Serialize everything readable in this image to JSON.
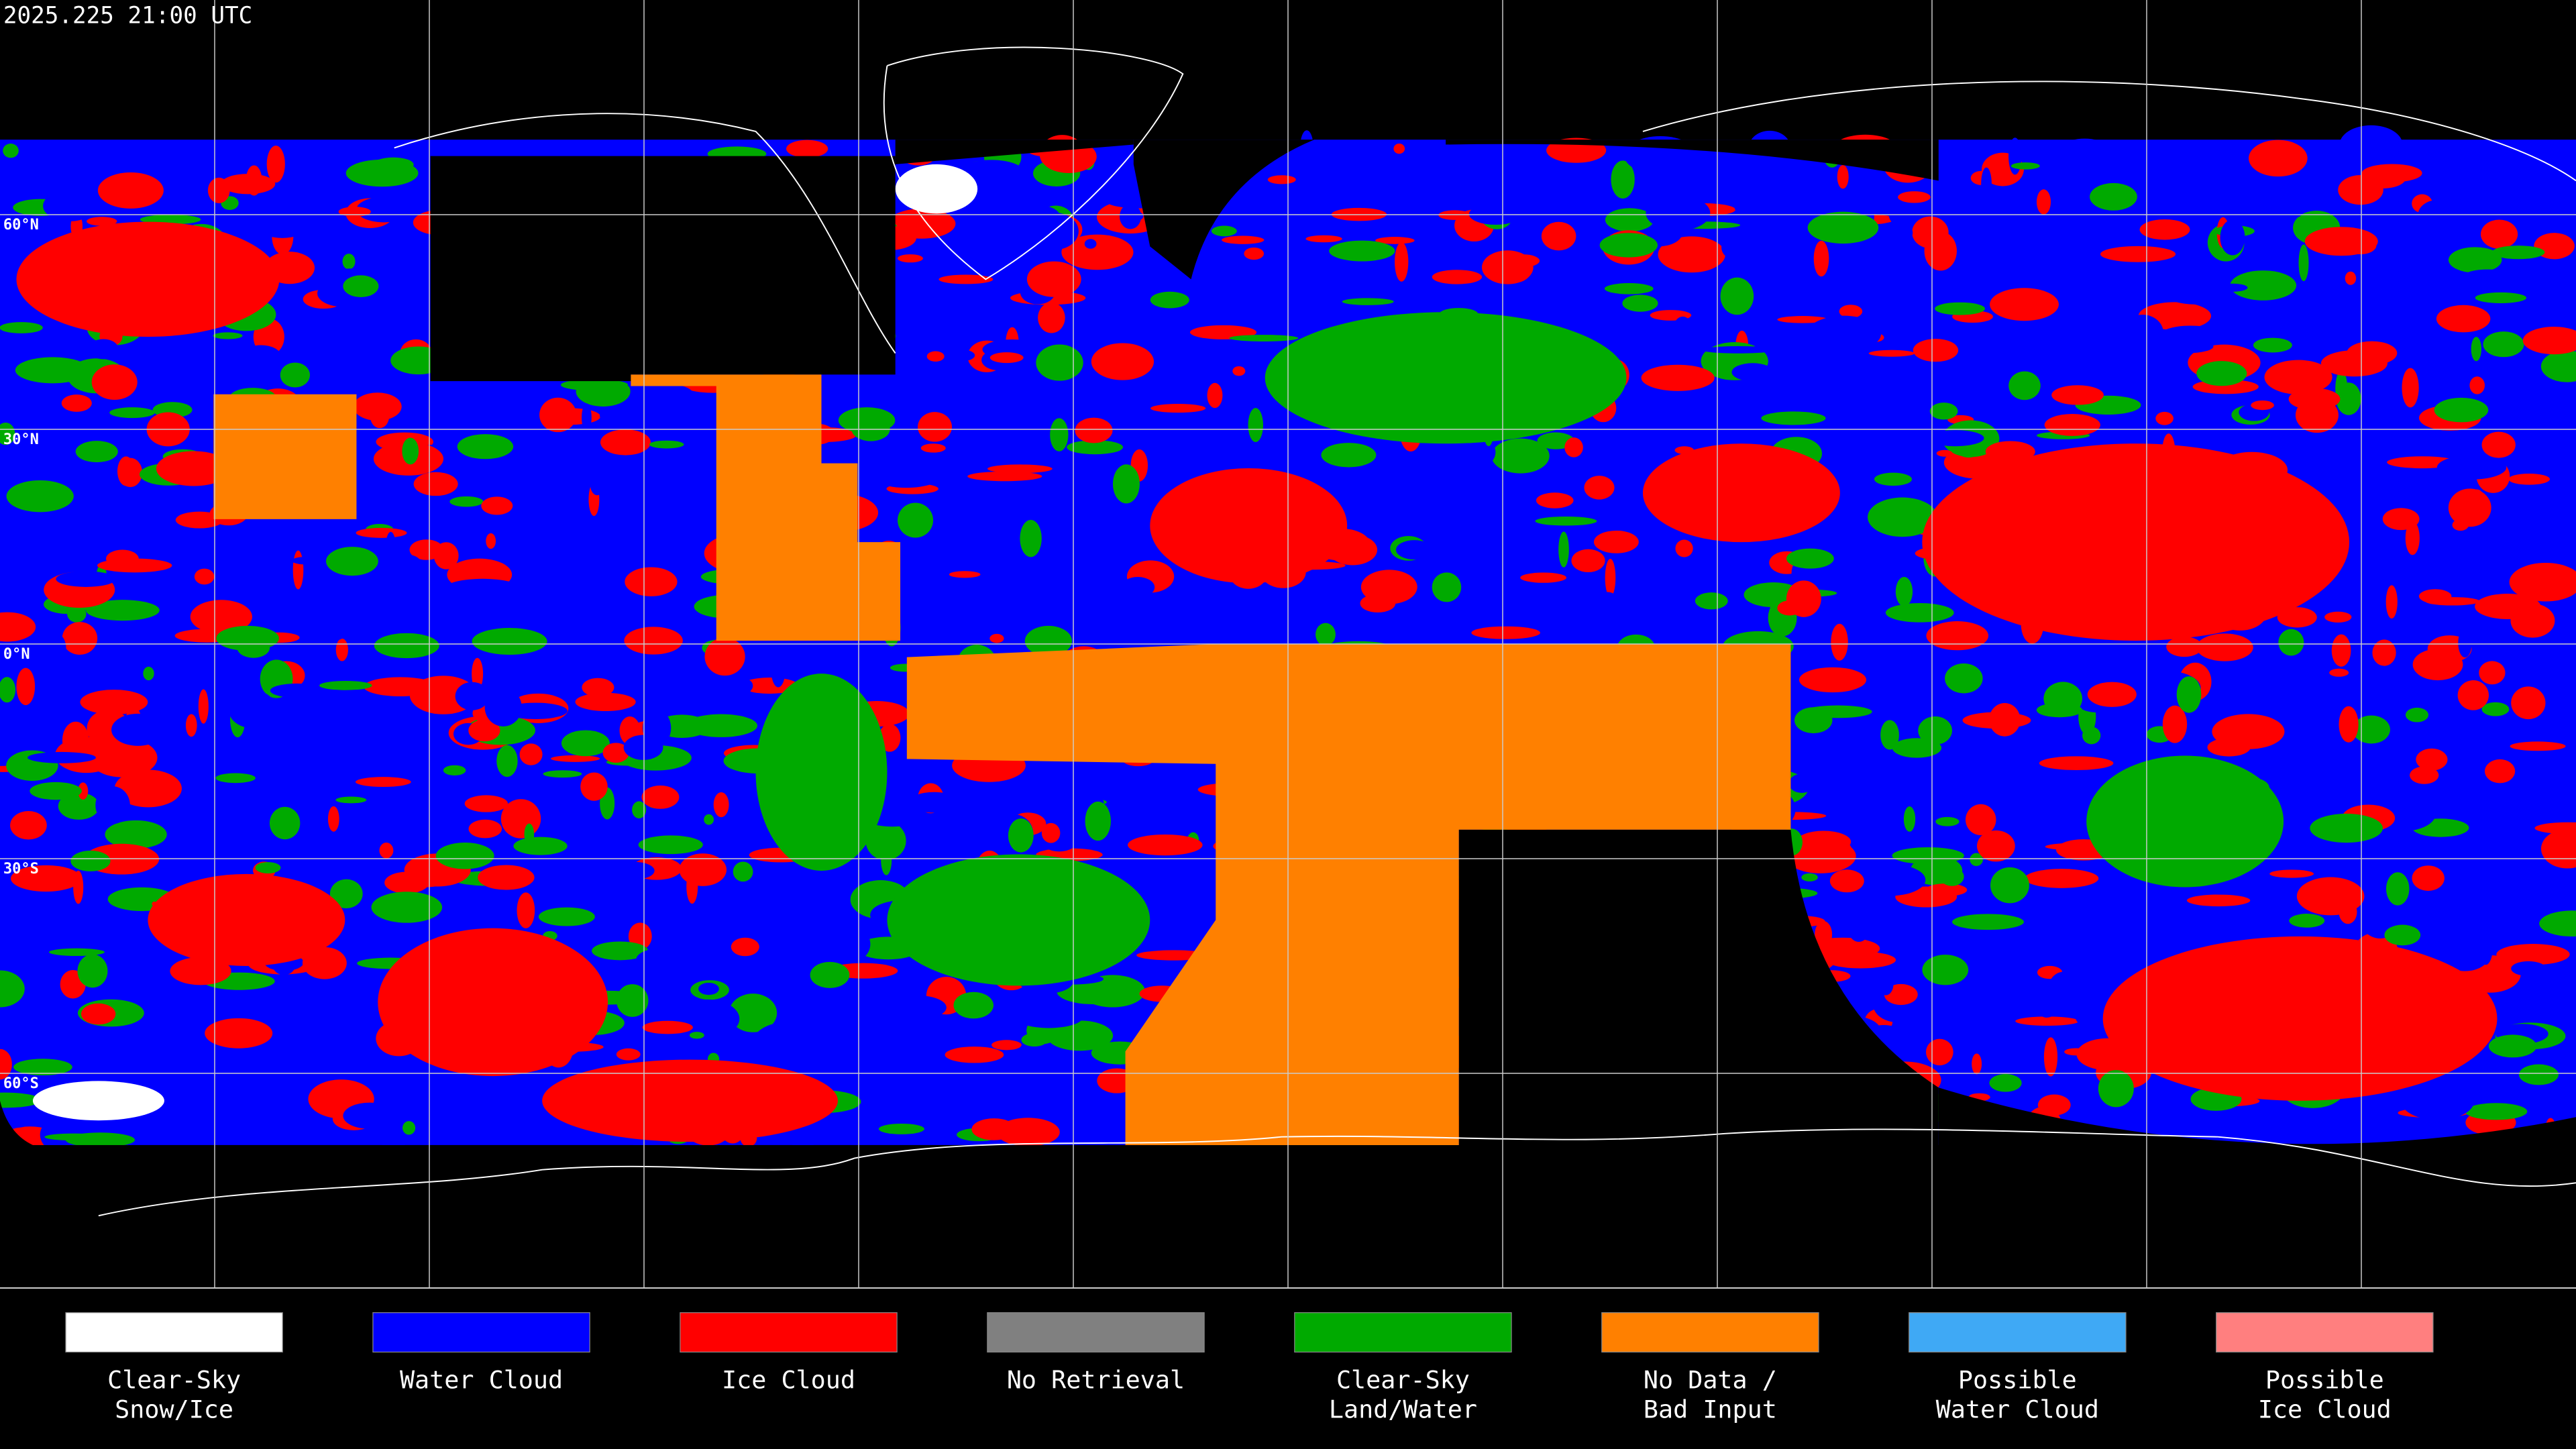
{
  "header": {
    "timestamp": "2025.225 21:00 UTC"
  },
  "map": {
    "latitude_labels": [
      "60°N",
      "30°N",
      "0°N",
      "30°S",
      "60°S"
    ]
  },
  "legend": [
    {
      "label": [
        "Clear-Sky",
        "Snow/Ice"
      ],
      "color": "#ffffff"
    },
    {
      "label": [
        "Water Cloud"
      ],
      "color": "#0000ff"
    },
    {
      "label": [
        "Ice Cloud"
      ],
      "color": "#ff0000"
    },
    {
      "label": [
        "No Retrieval"
      ],
      "color": "#808080"
    },
    {
      "label": [
        "Clear-Sky",
        "Land/Water"
      ],
      "color": "#00aa00"
    },
    {
      "label": [
        "No Data /",
        "Bad Input"
      ],
      "color": "#ff8000"
    },
    {
      "label": [
        "Possible",
        "Water Cloud"
      ],
      "color": "#3fa9f5"
    },
    {
      "label": [
        "Possible",
        "Ice Cloud"
      ],
      "color": "#ff7f7f"
    }
  ]
}
